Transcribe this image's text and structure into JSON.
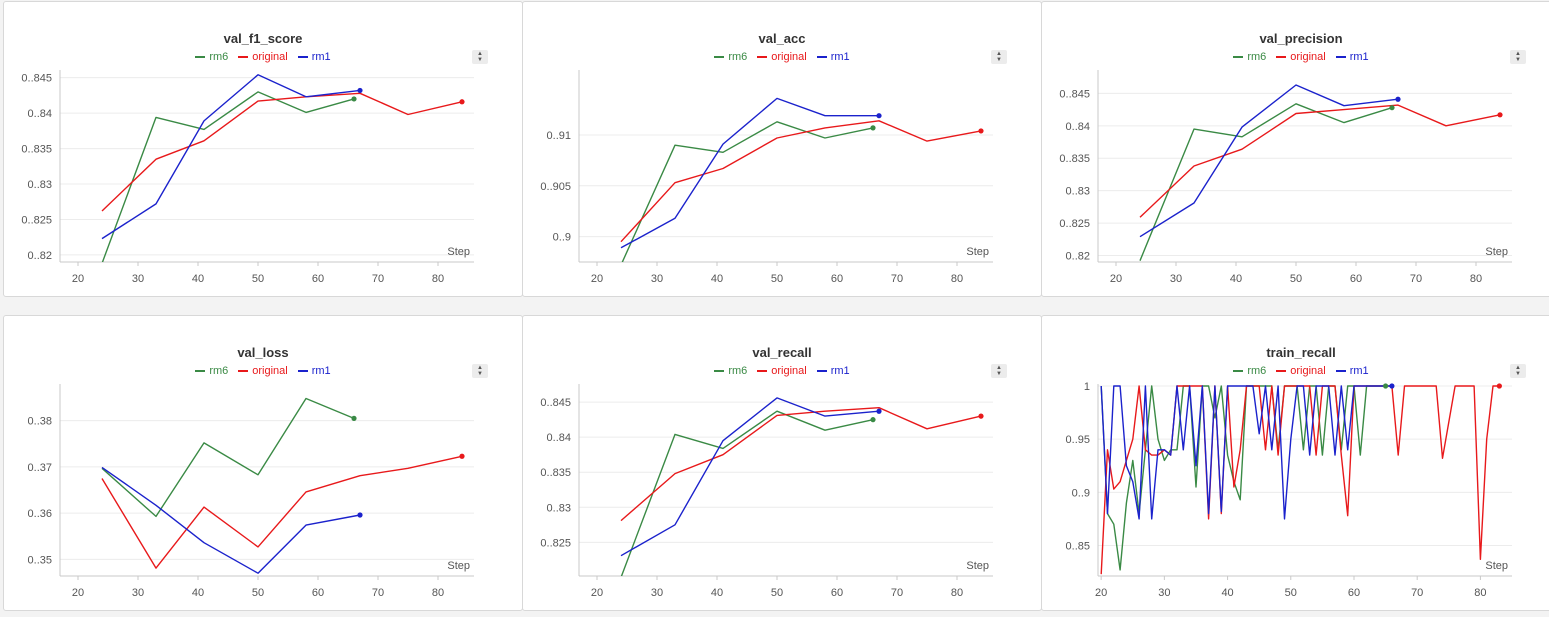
{
  "series_meta": [
    {
      "name": "rm6",
      "color": "#3a8a45"
    },
    {
      "name": "original",
      "color": "#e8191b"
    },
    {
      "name": "rm1",
      "color": "#1b22cc"
    }
  ],
  "menu_icon": "sort-arrows-icon",
  "chart_data": [
    {
      "type": "line",
      "title": "val_f1_score",
      "xlabel": "Step",
      "xlim": [
        17,
        86
      ],
      "xticks": [
        20,
        30,
        40,
        50,
        60,
        70,
        80
      ],
      "ylim": [
        0.819,
        0.8458
      ],
      "yticks": [
        0.82,
        0.825,
        0.83,
        0.835,
        0.84,
        0.845
      ],
      "series": [
        {
          "name": "rm6",
          "x": [
            24,
            33,
            41,
            50,
            58,
            66
          ],
          "y": [
            0.8188,
            0.8394,
            0.8377,
            0.843,
            0.8401,
            0.842
          ],
          "end_marker": true
        },
        {
          "name": "original",
          "x": [
            24,
            33,
            41,
            50,
            58,
            67,
            75,
            84
          ],
          "y": [
            0.8262,
            0.8335,
            0.8361,
            0.8417,
            0.8423,
            0.8428,
            0.8398,
            0.8416
          ],
          "end_marker": true
        },
        {
          "name": "rm1",
          "x": [
            24,
            33,
            41,
            50,
            58,
            67
          ],
          "y": [
            0.8223,
            0.8272,
            0.8389,
            0.8454,
            0.8423,
            0.8432
          ],
          "end_marker": true
        }
      ]
    },
    {
      "type": "line",
      "title": "val_acc",
      "xlabel": "Step",
      "xlim": [
        17,
        86
      ],
      "xticks": [
        20,
        30,
        40,
        50,
        60,
        70,
        80
      ],
      "ylim": [
        0.8975,
        0.9162
      ],
      "yticks": [
        0.9,
        0.905,
        0.91
      ],
      "series": [
        {
          "name": "rm6",
          "x": [
            24,
            33,
            41,
            50,
            58,
            66
          ],
          "y": [
            0.8972,
            0.909,
            0.9083,
            0.9113,
            0.9097,
            0.9107
          ],
          "end_marker": true
        },
        {
          "name": "original",
          "x": [
            24,
            33,
            41,
            50,
            58,
            67,
            75,
            84
          ],
          "y": [
            0.8995,
            0.9053,
            0.9067,
            0.9097,
            0.9107,
            0.9114,
            0.9094,
            0.9104
          ],
          "end_marker": true
        },
        {
          "name": "rm1",
          "x": [
            24,
            33,
            41,
            50,
            58,
            67
          ],
          "y": [
            0.8989,
            0.9018,
            0.9091,
            0.9136,
            0.9119,
            0.9119
          ],
          "end_marker": true
        }
      ]
    },
    {
      "type": "line",
      "title": "val_precision",
      "xlabel": "Step",
      "xlim": [
        17,
        86
      ],
      "xticks": [
        20,
        30,
        40,
        50,
        60,
        70,
        80
      ],
      "ylim": [
        0.819,
        0.8483
      ],
      "yticks": [
        0.82,
        0.825,
        0.83,
        0.835,
        0.84,
        0.845
      ],
      "series": [
        {
          "name": "rm6",
          "x": [
            24,
            33,
            41,
            50,
            58,
            66
          ],
          "y": [
            0.8192,
            0.8395,
            0.8383,
            0.8434,
            0.8405,
            0.8428
          ],
          "end_marker": true
        },
        {
          "name": "original",
          "x": [
            24,
            33,
            41,
            50,
            58,
            67,
            75,
            84
          ],
          "y": [
            0.8259,
            0.8338,
            0.8364,
            0.8419,
            0.8425,
            0.8432,
            0.84,
            0.8417
          ],
          "end_marker": true
        },
        {
          "name": "rm1",
          "x": [
            24,
            33,
            41,
            50,
            58,
            67
          ],
          "y": [
            0.8229,
            0.8281,
            0.8398,
            0.8463,
            0.8431,
            0.8441
          ],
          "end_marker": true
        }
      ]
    },
    {
      "type": "line",
      "title": "val_loss",
      "xlabel": "Step",
      "xlim": [
        17,
        86
      ],
      "xticks": [
        20,
        30,
        40,
        50,
        60,
        70,
        80
      ],
      "ylim": [
        0.3464,
        0.3875
      ],
      "yticks": [
        0.35,
        0.36,
        0.37,
        0.38
      ],
      "series": [
        {
          "name": "rm6",
          "x": [
            24,
            33,
            41,
            50,
            58,
            66
          ],
          "y": [
            0.3697,
            0.3593,
            0.3752,
            0.3683,
            0.3848,
            0.3805
          ],
          "end_marker": true
        },
        {
          "name": "original",
          "x": [
            24,
            33,
            41,
            50,
            58,
            67,
            75,
            84
          ],
          "y": [
            0.3675,
            0.3481,
            0.3613,
            0.3527,
            0.3646,
            0.3681,
            0.3697,
            0.3723
          ],
          "end_marker": true
        },
        {
          "name": "rm1",
          "x": [
            24,
            33,
            41,
            50,
            58,
            67
          ],
          "y": [
            0.3699,
            0.3617,
            0.3536,
            0.347,
            0.3574,
            0.3596
          ],
          "end_marker": true
        }
      ]
    },
    {
      "type": "line",
      "title": "val_recall",
      "xlabel": "Step",
      "xlim": [
        17,
        86
      ],
      "xticks": [
        20,
        30,
        40,
        50,
        60,
        70,
        80
      ],
      "ylim": [
        0.8202,
        0.8473
      ],
      "yticks": [
        0.825,
        0.83,
        0.835,
        0.84,
        0.845
      ],
      "series": [
        {
          "name": "rm6",
          "x": [
            24,
            33,
            41,
            50,
            58,
            66
          ],
          "y": [
            0.82,
            0.8404,
            0.8384,
            0.8437,
            0.841,
            0.8425
          ],
          "end_marker": true
        },
        {
          "name": "original",
          "x": [
            24,
            33,
            41,
            50,
            58,
            67,
            75,
            84
          ],
          "y": [
            0.8281,
            0.8348,
            0.8375,
            0.8431,
            0.8437,
            0.8442,
            0.8412,
            0.843
          ],
          "end_marker": true
        },
        {
          "name": "rm1",
          "x": [
            24,
            33,
            41,
            50,
            58,
            67
          ],
          "y": [
            0.8231,
            0.8275,
            0.8395,
            0.8456,
            0.843,
            0.8437
          ],
          "end_marker": true
        }
      ]
    },
    {
      "type": "line",
      "title": "train_recall",
      "xlabel": "Step",
      "xlim": [
        19.5,
        85
      ],
      "xticks": [
        20,
        30,
        40,
        50,
        60,
        70,
        80
      ],
      "ylim": [
        0.8213,
        1.0
      ],
      "yticks": [
        0.85,
        0.9,
        0.95,
        1
      ],
      "series": [
        {
          "name": "rm6",
          "x": [
            20,
            21,
            22,
            23,
            24,
            25,
            26,
            27,
            28,
            29,
            30,
            31,
            32,
            33,
            34,
            35,
            36,
            37,
            38,
            39,
            40,
            41,
            42,
            43,
            44,
            45,
            46,
            47,
            48,
            49,
            50,
            51,
            52,
            53,
            54,
            55,
            56,
            57,
            58,
            59,
            60,
            61,
            62,
            63,
            64,
            65
          ],
          "y": [
            1,
            0.88,
            0.87,
            0.827,
            0.89,
            0.93,
            0.88,
            0.94,
            1,
            0.95,
            0.93,
            0.94,
            0.94,
            1,
            1,
            0.905,
            1,
            1,
            0.97,
            1,
            0.935,
            0.91,
            0.893,
            1,
            1,
            1,
            1,
            1,
            0.94,
            1,
            1,
            1,
            0.94,
            1,
            1,
            0.935,
            1,
            1,
            0.94,
            1,
            1,
            0.935,
            1,
            1,
            1,
            1
          ],
          "end_marker": true
        },
        {
          "name": "original",
          "x": [
            20,
            21,
            22,
            23,
            24,
            25,
            26,
            27,
            28,
            29,
            30,
            31,
            32,
            33,
            34,
            35,
            36,
            37,
            38,
            39,
            40,
            41,
            42,
            43,
            44,
            45,
            46,
            47,
            48,
            49,
            50,
            51,
            52,
            53,
            54,
            55,
            56,
            57,
            58,
            59,
            60,
            61,
            62,
            63,
            64,
            65,
            66,
            67,
            68,
            70,
            72,
            73,
            74,
            76,
            78,
            79,
            80,
            81,
            82,
            83
          ],
          "y": [
            0.823,
            0.94,
            0.903,
            0.91,
            0.93,
            0.95,
            1,
            0.94,
            0.935,
            0.935,
            0.94,
            0.935,
            1,
            1,
            1,
            1,
            1,
            0.875,
            1,
            0.88,
            1,
            0.905,
            0.94,
            1,
            1,
            1,
            0.94,
            1,
            0.935,
            1,
            1,
            1,
            1,
            1,
            0.935,
            1,
            1,
            1,
            0.935,
            0.878,
            1,
            1,
            1,
            1,
            1,
            1,
            1,
            0.935,
            1,
            1,
            1,
            1,
            0.932,
            1,
            1,
            1,
            0.837,
            0.95,
            1,
            1
          ],
          "end_marker": true
        },
        {
          "name": "rm1",
          "x": [
            20,
            21,
            22,
            23,
            24,
            25,
            26,
            27,
            28,
            29,
            30,
            31,
            32,
            33,
            34,
            35,
            36,
            37,
            38,
            39,
            40,
            41,
            42,
            43,
            44,
            45,
            46,
            47,
            48,
            49,
            50,
            51,
            52,
            53,
            54,
            55,
            56,
            57,
            58,
            59,
            60,
            61,
            62,
            63,
            64,
            65,
            66
          ],
          "y": [
            1,
            0.88,
            1,
            1,
            0.925,
            0.91,
            0.875,
            1,
            0.875,
            0.94,
            0.94,
            0.935,
            1,
            0.94,
            1,
            0.925,
            1,
            0.88,
            1,
            0.882,
            1,
            1,
            1,
            1,
            1,
            0.955,
            1,
            0.94,
            1,
            0.875,
            0.95,
            1,
            1,
            0.935,
            1,
            1,
            1,
            0.935,
            1,
            0.94,
            1,
            1,
            1,
            1,
            1,
            1,
            1
          ],
          "end_marker": true
        }
      ]
    }
  ]
}
